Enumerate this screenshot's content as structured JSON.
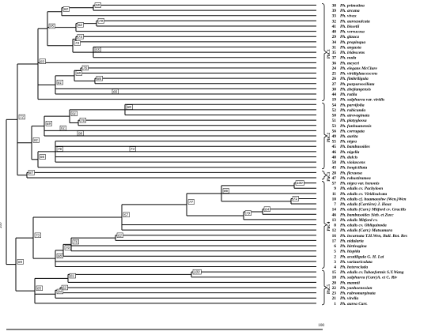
{
  "tree": {
    "taxa": [
      {
        "num": "38",
        "name": "Ph. primotina"
      },
      {
        "num": "39",
        "name": "Ph. arcana"
      },
      {
        "num": "33",
        "name": "Ph. vivax"
      },
      {
        "num": "32",
        "name": "Ph. aureasulcata"
      },
      {
        "num": "41",
        "name": "Ph. bissetii"
      },
      {
        "num": "40",
        "name": "Ph. verrucosa"
      },
      {
        "num": "29",
        "name": "Ph. glauca"
      },
      {
        "num": "34",
        "name": "Ph. propinqua"
      },
      {
        "num": "31",
        "name": "Ph. angusta"
      },
      {
        "num": "35",
        "name": "Ph. iridescens"
      },
      {
        "num": "37",
        "name": "Ph. nuda"
      },
      {
        "num": "36",
        "name": "Ph. meyeri"
      },
      {
        "num": "24",
        "name": "Ph. elegans McClure"
      },
      {
        "num": "25",
        "name": "Ph. viridiglaucescens"
      },
      {
        "num": "26",
        "name": "Ph. fimbriligula"
      },
      {
        "num": "27",
        "name": "Ph. purpureociliata"
      },
      {
        "num": "30",
        "name": "Ph. zhejiangensis"
      },
      {
        "num": "44",
        "name": "Ph. rutila"
      },
      {
        "num": "19",
        "name": "Ph. sulphurea var. viridis"
      },
      {
        "num": "54",
        "name": "Ph. parvifolia"
      },
      {
        "num": "52",
        "name": "Ph. rubicunda"
      },
      {
        "num": "50",
        "name": "Ph. atrovaginata"
      },
      {
        "num": "51",
        "name": "Ph. platyglossa"
      },
      {
        "num": "53",
        "name": "Ph. funhuanensis"
      },
      {
        "num": "56",
        "name": "Ph. corrugata"
      },
      {
        "num": "49",
        "name": "Ph. aurita"
      },
      {
        "num": "55",
        "name": "Ph. nigra"
      },
      {
        "num": "45",
        "name": "Ph. bambusoides"
      },
      {
        "num": "46",
        "name": "Ph. nigella"
      },
      {
        "num": "48",
        "name": "Ph. dulcis"
      },
      {
        "num": "58",
        "name": "Ph. violascens"
      },
      {
        "num": "43",
        "name": "Ph. longiciliata"
      },
      {
        "num": "28",
        "name": "Ph. flexuosa"
      },
      {
        "num": "47",
        "name": "Ph. robustiramea"
      },
      {
        "num": "57",
        "name": "Ph. nigra var. henonis"
      },
      {
        "num": "9",
        "name": "Ph. edulis cv. Pachyloen"
      },
      {
        "num": "11",
        "name": "Ph. edulis cv. Viridisulcata"
      },
      {
        "num": "10",
        "name": "Ph. edulis cf. huamaoyhw (Wen.)Wen"
      },
      {
        "num": "7",
        "name": "Ph. edulis (Carrière) J. Houz"
      },
      {
        "num": "14",
        "name": "Ph. edulis (Carr.) Mitford cv. Gracilis"
      },
      {
        "num": "46",
        "name": "Ph. bambusoides Sieb. et Zucc"
      },
      {
        "num": "13",
        "name": "Ph. edulis Mitford cv."
      },
      {
        "num": "8",
        "name": "Ph. edulis cv. Obliquinoda"
      },
      {
        "num": "12",
        "name": "Ph. edulis (Carr.) Matsumura"
      },
      {
        "num": "16",
        "name": "Ph. incarnata T.H.Wen, Bull. Bot. Res"
      },
      {
        "num": "17",
        "name": "Ph. nidularia"
      },
      {
        "num": "6",
        "name": "Ph. hirtivagina"
      },
      {
        "num": "5",
        "name": "Ph. hispida"
      },
      {
        "num": "2",
        "name": "Ph. acutiligula G. H. Lai"
      },
      {
        "num": "3",
        "name": "Ph. variauriculata"
      },
      {
        "num": "4",
        "name": "Ph. heteroclada"
      },
      {
        "num": "15",
        "name": "Ph. edulis cv.Tubaeformis S.Y.Wang"
      },
      {
        "num": "18",
        "name": "Ph. sulphurea (Carr)A. et C. Riv"
      },
      {
        "num": "20",
        "name": "Ph. mannii"
      },
      {
        "num": "22",
        "name": "Ph. yunhoensxian"
      },
      {
        "num": "23",
        "name": "Ph. rubromarginata"
      },
      {
        "num": "21",
        "name": "Ph. virella"
      },
      {
        "num": "1",
        "name": "Ph. aurea Carr."
      }
    ],
    "clades": [
      {
        "label": "PhC1",
        "first": 0,
        "last": 18
      },
      {
        "label": "PhC2",
        "first": 19,
        "last": 31
      },
      {
        "label": "PhC3",
        "first": 32,
        "last": 33
      },
      {
        "label": "PhC4",
        "first": 34,
        "last": 50
      },
      {
        "label": "PhC5",
        "first": 51,
        "last": 57
      }
    ],
    "root_bootstrap": "100",
    "scale_label": "100"
  },
  "bootstraps": {
    "b1": "58",
    "b2": "82",
    "b3": "95",
    "b4": "79",
    "b5": "62",
    "b6": "83",
    "b7": "74",
    "b8": "55",
    "b9": "73",
    "b10": "76",
    "b11": "86",
    "b12": "68",
    "b13": "61",
    "b14": "66",
    "b15": "72",
    "b16": "81",
    "b17": "80",
    "b18": "76",
    "b19": "91",
    "b20": "61",
    "b21": "98",
    "b22": "69",
    "b23": "66",
    "b24": "74",
    "b25": "76",
    "b26": "74",
    "b27": "87",
    "b28": "100",
    "b29": "71",
    "b30": "86",
    "b31": "64",
    "b32": "79",
    "b33": "92",
    "b34": "77",
    "b35": "57",
    "b36": "73",
    "b37": "62",
    "b38": "86",
    "b39": "76",
    "b40": "70",
    "b41": "88",
    "b42": "100",
    "b43": "81",
    "b44": "65",
    "b45": "62",
    "b46": "94",
    "b47": "85"
  }
}
